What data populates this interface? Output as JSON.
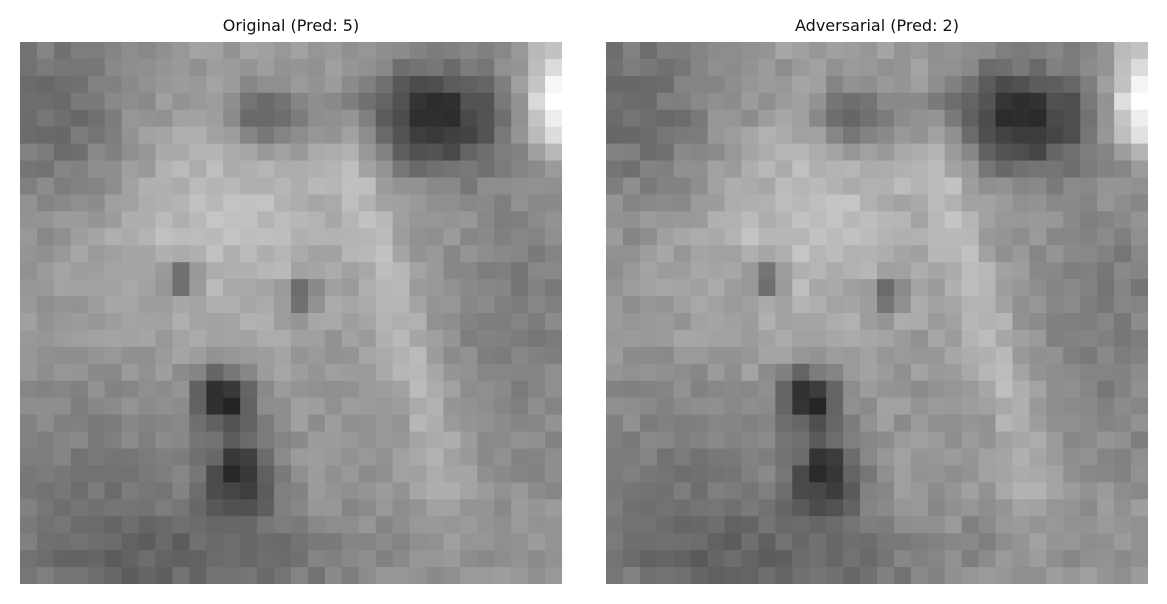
{
  "panels": [
    {
      "title": "Original (Pred: 5)"
    },
    {
      "title": "Adversarial (Pred: 2)"
    }
  ],
  "image": {
    "grid_size": 32,
    "colormap": "grayscale"
  }
}
